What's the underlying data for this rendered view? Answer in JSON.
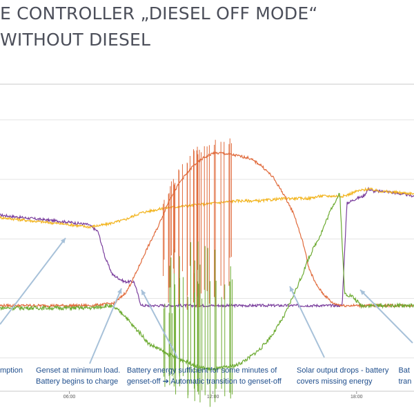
{
  "page": {
    "title_line1": "E CONTROLLER „DIESEL OFF MODE“",
    "title_line2": "WITHOUT DIESEL"
  },
  "chart_data": {
    "type": "line",
    "title": "",
    "xlabel": "",
    "ylabel": "",
    "x_ticks": [
      "06:00",
      "12:00",
      "18:00"
    ],
    "x_tick_hours": [
      6,
      12,
      18
    ],
    "xlim": [
      3.1,
      20.4
    ],
    "ylim": [
      -14,
      115
    ],
    "grid": true,
    "colors": {
      "purple": "#7a3e9d",
      "yellow": "#f2b41e",
      "orange": "#e06a3b",
      "green": "#6dab32",
      "annotation_text": "#1f4e8c",
      "arrow": "#a7c1d9"
    },
    "series": [
      {
        "color": "purple",
        "x": [
          3.1,
          4.0,
          5.0,
          6.0,
          6.8,
          7.2,
          7.5,
          7.8,
          8.3,
          8.7,
          9.0,
          17.4,
          17.5,
          17.6,
          18.0,
          18.3,
          18.5,
          18.7,
          19.2,
          20.4
        ],
        "y": [
          60,
          59,
          58,
          57,
          56,
          53,
          42,
          35,
          32,
          32,
          22,
          22,
          45,
          65,
          67,
          68,
          71,
          70,
          70,
          68
        ]
      },
      {
        "color": "yellow",
        "x": [
          3.1,
          4.0,
          5.0,
          6.0,
          6.8,
          7.5,
          8.3,
          9.0,
          10.0,
          11.0,
          12.0,
          13.0,
          14.0,
          15.0,
          16.0,
          16.5,
          17.0,
          17.5,
          18.0,
          18.5,
          19.0,
          20.4
        ],
        "y": [
          59,
          58,
          57,
          56,
          55,
          56,
          58,
          61,
          63,
          64,
          65,
          66,
          66,
          67,
          67,
          68,
          68,
          68,
          70,
          71,
          70,
          69
        ]
      },
      {
        "color": "orange",
        "x": [
          3.1,
          4.0,
          5.0,
          6.0,
          7.0,
          7.9,
          8.4,
          8.8,
          9.2,
          9.7,
          10.2,
          10.7,
          11.2,
          11.6,
          12.0,
          12.4,
          13.0,
          13.5,
          14.0,
          14.5,
          15.0,
          15.4,
          15.8,
          16.0,
          16.3,
          16.6,
          17.0,
          17.4,
          17.7,
          20.4
        ],
        "y": [
          22,
          22,
          22,
          22,
          22,
          23,
          28,
          36,
          45,
          55,
          67,
          75,
          81,
          84,
          86,
          86,
          85,
          84,
          81,
          76,
          68,
          60,
          47,
          38,
          31,
          27,
          23,
          22,
          22,
          22
        ]
      },
      {
        "color": "green",
        "x": [
          3.1,
          4.0,
          5.0,
          6.0,
          7.0,
          7.6,
          7.9,
          8.3,
          8.6,
          9.0,
          9.3,
          9.7,
          10.0,
          10.5,
          11.0,
          11.5,
          12.0,
          12.5,
          13.0,
          13.5,
          14.0,
          14.5,
          15.0,
          15.3,
          15.7,
          16.0,
          16.5,
          17.0,
          17.3,
          17.5,
          17.8,
          18.2,
          19.0,
          20.4
        ],
        "y": [
          21,
          21,
          21,
          21,
          21,
          22,
          21,
          18,
          14,
          10,
          6,
          4,
          2,
          0,
          -2,
          -4,
          -5,
          -4,
          -3,
          0,
          4,
          10,
          18,
          25,
          34,
          42,
          52,
          64,
          69,
          27,
          26,
          22,
          22,
          22
        ]
      }
    ],
    "annotations": [
      {
        "lines": [
          "mption"
        ],
        "x_hour": 3.1
      },
      {
        "lines": [
          "Genset at minimum load.",
          "Battery begins to charge"
        ],
        "x_hour": 4.6
      },
      {
        "lines": [
          "Battery energy sufficient for some minutes of",
          "genset-off ➔ Automatic transition to genset-off"
        ],
        "x_hour": 8.4
      },
      {
        "lines": [
          "Solar output drops - battery",
          "covers missing energy"
        ],
        "x_hour": 15.5
      },
      {
        "lines": [
          "Bat",
          "tran"
        ],
        "x_hour": 19.75
      }
    ]
  }
}
